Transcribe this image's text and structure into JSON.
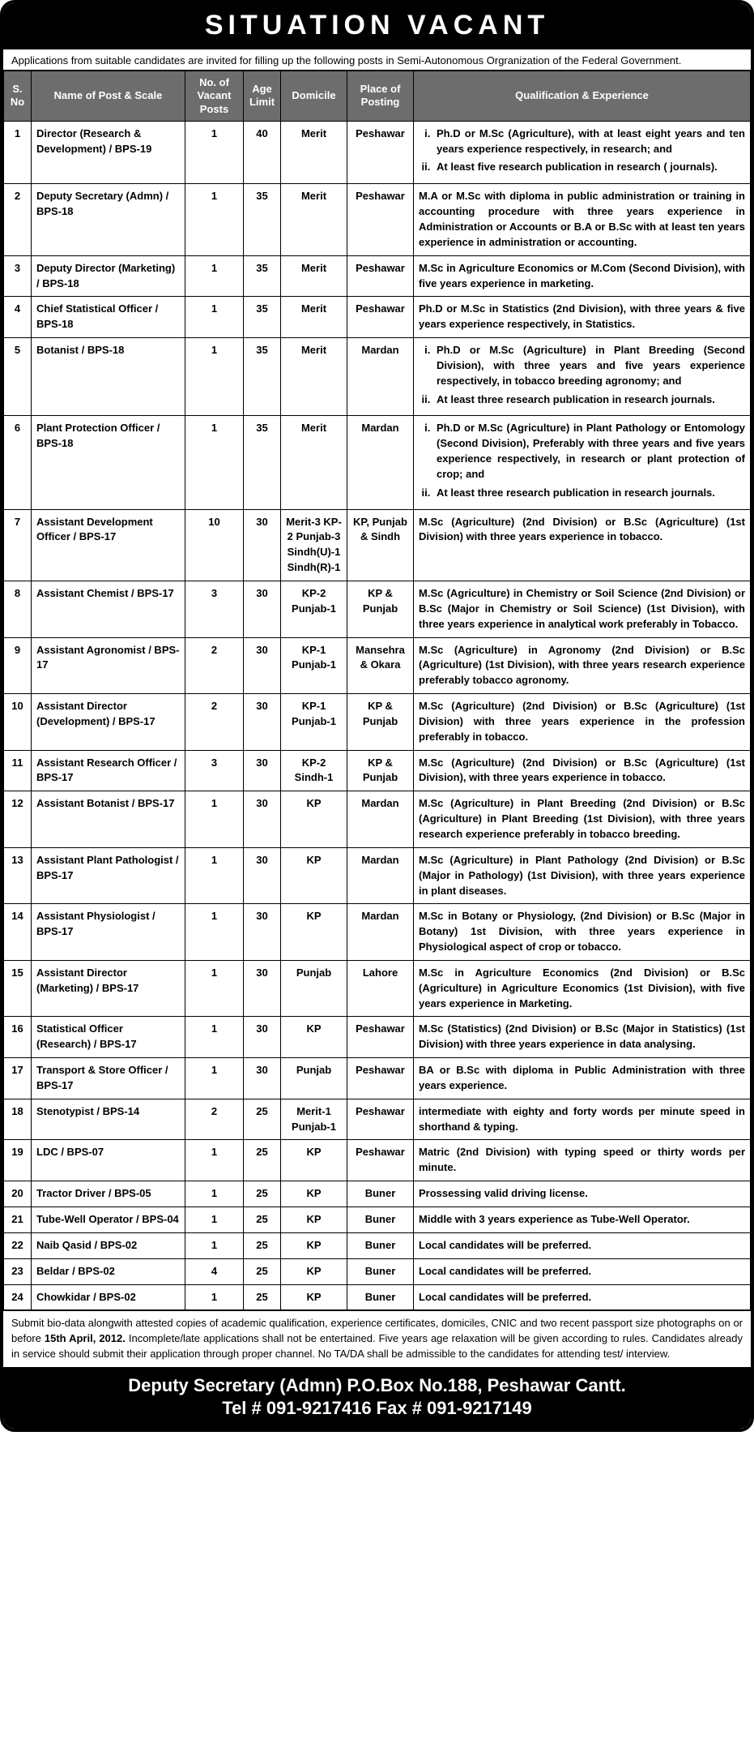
{
  "header": {
    "title": "SITUATION  VACANT"
  },
  "intro": "Applications from suitable candidates are invited for filling up the following posts in Semi-Autonomous Orgranization of the  Federal Government.",
  "columns": {
    "sno": "S. No",
    "name": "Name of Post & Scale",
    "num": "No. of Vacant Posts",
    "age": "Age Limit",
    "dom": "Domicile",
    "place": "Place of Posting",
    "qual": "Qualification & Experience"
  },
  "rows": [
    {
      "sno": "1",
      "name": "Director (Research & Development) / BPS-19",
      "num": "1",
      "age": "40",
      "dom": "Merit",
      "place": "Peshawar",
      "qual": [
        "Ph.D or M.Sc (Agriculture), with at least eight years and ten years experience respectively, in research; and",
        "At least five research publication in research ( journals)."
      ]
    },
    {
      "sno": "2",
      "name": "Deputy Secretary (Admn) / BPS-18",
      "num": "1",
      "age": "35",
      "dom": "Merit",
      "place": "Peshawar",
      "qual": "M.A or M.Sc with diploma in public administration or training in accounting procedure with three years experience in Administration or Accounts or B.A or B.Sc with at least ten years experience in administration or accounting."
    },
    {
      "sno": "3",
      "name": "Deputy Director (Marketing) / BPS-18",
      "num": "1",
      "age": "35",
      "dom": "Merit",
      "place": "Peshawar",
      "qual": "M.Sc in Agriculture Economics or M.Com (Second Division), with five years experience in marketing."
    },
    {
      "sno": "4",
      "name": "Chief Statistical Officer / BPS-18",
      "num": "1",
      "age": "35",
      "dom": "Merit",
      "place": "Peshawar",
      "qual": "Ph.D or M.Sc in Statistics (2nd Division), with three years & five years experience respectively, in Statistics."
    },
    {
      "sno": "5",
      "name": "Botanist / BPS-18",
      "num": "1",
      "age": "35",
      "dom": "Merit",
      "place": "Mardan",
      "qual": [
        "Ph.D or M.Sc (Agriculture) in Plant Breeding (Second Division), with three years and five years experience respectively, in tobacco breeding agronomy; and",
        "At least three research publication in research journals."
      ]
    },
    {
      "sno": "6",
      "name": "Plant Protection Officer / BPS-18",
      "num": "1",
      "age": "35",
      "dom": "Merit",
      "place": "Mardan",
      "qual": [
        "Ph.D or M.Sc (Agriculture) in Plant Pathology or Entomology (Second Division), Preferably with three years and five years experience respectively,  in research or plant protection of crop; and",
        "At least three research publication in research journals."
      ]
    },
    {
      "sno": "7",
      "name": "Assistant Development Officer / BPS-17",
      "num": "10",
      "age": "30",
      "dom": "Merit-3 KP-2 Punjab-3 Sindh(U)-1 Sindh(R)-1",
      "place": "KP, Punjab & Sindh",
      "qual": "M.Sc (Agriculture) (2nd Division) or B.Sc (Agriculture) (1st Division) with three years experience in tobacco."
    },
    {
      "sno": "8",
      "name": "Assistant Chemist / BPS-17",
      "num": "3",
      "age": "30",
      "dom": "KP-2 Punjab-1",
      "place": "KP & Punjab",
      "qual": "M.Sc (Agriculture) in Chemistry or Soil Science (2nd Division) or B.Sc (Major in Chemistry or Soil Science) (1st Division), with three years experience in analytical work preferably in Tobacco."
    },
    {
      "sno": "9",
      "name": "Assistant Agronomist / BPS-17",
      "num": "2",
      "age": "30",
      "dom": "KP-1 Punjab-1",
      "place": "Mansehra & Okara",
      "qual": "M.Sc (Agriculture) in Agronomy (2nd Division) or B.Sc (Agriculture) (1st Division), with three years research experience preferably tobacco agronomy."
    },
    {
      "sno": "10",
      "name": "Assistant Director (Development) / BPS-17",
      "num": "2",
      "age": "30",
      "dom": "KP-1 Punjab-1",
      "place": "KP & Punjab",
      "qual": "M.Sc (Agriculture) (2nd Division) or B.Sc (Agriculture) (1st Division) with three years experience in the profession preferably in tobacco."
    },
    {
      "sno": "11",
      "name": "Assistant Research Officer / BPS-17",
      "num": "3",
      "age": "30",
      "dom": "KP-2 Sindh-1",
      "place": "KP & Punjab",
      "qual": "M.Sc (Agriculture) (2nd Division) or B.Sc (Agriculture) (1st Division), with three years experience in tobacco."
    },
    {
      "sno": "12",
      "name": "Assistant Botanist / BPS-17",
      "num": "1",
      "age": "30",
      "dom": "KP",
      "place": "Mardan",
      "qual": "M.Sc (Agriculture) in Plant Breeding (2nd Division) or B.Sc (Agriculture) in Plant Breeding (1st Division), with three years research experience preferably in tobacco breeding."
    },
    {
      "sno": "13",
      "name": "Assistant Plant Pathologist / BPS-17",
      "num": "1",
      "age": "30",
      "dom": "KP",
      "place": "Mardan",
      "qual": "M.Sc (Agriculture) in Plant Pathology (2nd Division) or B.Sc (Major in Pathology) (1st Division), with three years experience in plant diseases."
    },
    {
      "sno": "14",
      "name": "Assistant Physiologist / BPS-17",
      "num": "1",
      "age": "30",
      "dom": "KP",
      "place": "Mardan",
      "qual": "M.Sc in Botany or Physiology, (2nd Division) or B.Sc (Major in Botany) 1st Division, with three years experience in Physiological aspect of crop or tobacco."
    },
    {
      "sno": "15",
      "name": "Assistant Director (Marketing) / BPS-17",
      "num": "1",
      "age": "30",
      "dom": "Punjab",
      "place": "Lahore",
      "qual": "M.Sc in Agriculture Economics (2nd Division) or B.Sc (Agriculture) in Agriculture Economics (1st Division), with five years experience in Marketing."
    },
    {
      "sno": "16",
      "name": "Statistical Officer (Research) / BPS-17",
      "num": "1",
      "age": "30",
      "dom": "KP",
      "place": "Peshawar",
      "qual": "M.Sc (Statistics) (2nd Division) or B.Sc (Major in Statistics) (1st Division) with three years experience in data analysing."
    },
    {
      "sno": "17",
      "name": "Transport & Store Officer / BPS-17",
      "num": "1",
      "age": "30",
      "dom": "Punjab",
      "place": "Peshawar",
      "qual": "BA or B.Sc with diploma in Public Administration with three years experience."
    },
    {
      "sno": "18",
      "name": "Stenotypist / BPS-14",
      "num": "2",
      "age": "25",
      "dom": "Merit-1 Punjab-1",
      "place": "Peshawar",
      "qual": "intermediate with eighty and forty words per minute speed in shorthand & typing."
    },
    {
      "sno": "19",
      "name": "LDC / BPS-07",
      "num": "1",
      "age": "25",
      "dom": "KP",
      "place": "Peshawar",
      "qual": "Matric (2nd Division) with typing speed or thirty words per minute."
    },
    {
      "sno": "20",
      "name": "Tractor Driver / BPS-05",
      "num": "1",
      "age": "25",
      "dom": "KP",
      "place": "Buner",
      "qual": "Prossessing valid driving license."
    },
    {
      "sno": "21",
      "name": "Tube-Well Operator / BPS-04",
      "num": "1",
      "age": "25",
      "dom": "KP",
      "place": "Buner",
      "qual": "Middle with 3 years experience as Tube-Well Operator."
    },
    {
      "sno": "22",
      "name": "Naib Qasid / BPS-02",
      "num": "1",
      "age": "25",
      "dom": "KP",
      "place": "Buner",
      "qual": "Local candidates will be preferred."
    },
    {
      "sno": "23",
      "name": "Beldar / BPS-02",
      "num": "4",
      "age": "25",
      "dom": "KP",
      "place": "Buner",
      "qual": "Local candidates will be preferred."
    },
    {
      "sno": "24",
      "name": "Chowkidar / BPS-02",
      "num": "1",
      "age": "25",
      "dom": "KP",
      "place": "Buner",
      "qual": "Local candidates will be preferred."
    }
  ],
  "footer_note_pre": "Submit bio-data alongwith attested copies of academic qualification, experience certificates, domiciles, CNIC and two recent passport size photographs on or before ",
  "footer_note_bold": "15th April, 2012.",
  "footer_note_post": " Incomplete/late applications shall not be entertained. Five years age relaxation will be given according to rules. Candidates already in service should submit their application through proper channel. No TA/DA shall be admissible to the candidates for attending test/ interview.",
  "contact": {
    "line1": "Deputy Secretary (Admn) P.O.Box No.188, Peshawar Cantt.",
    "line2": "Tel # 091-9217416 Fax # 091-9217149"
  }
}
